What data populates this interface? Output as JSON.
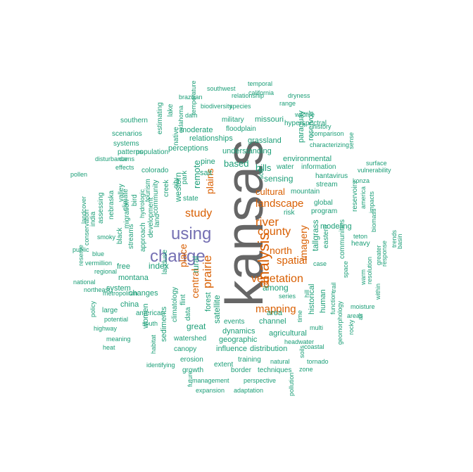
{
  "colors": {
    "top": "#666666",
    "high": "#7570B3",
    "mid": "#D95F02",
    "low": "#1B9E77"
  },
  "words": [
    {
      "text": "kansas",
      "level": "top"
    },
    {
      "text": "using",
      "level": "high"
    },
    {
      "text": "change",
      "level": "high"
    },
    {
      "text": "analysis",
      "level": "mid"
    },
    {
      "text": "river",
      "level": "mid"
    },
    {
      "text": "county",
      "level": "mid"
    },
    {
      "text": "vegetation",
      "level": "mid"
    },
    {
      "text": "prairie",
      "level": "mid"
    },
    {
      "text": "spatial",
      "level": "mid"
    },
    {
      "text": "mapping",
      "level": "mid"
    },
    {
      "text": "study",
      "level": "mid"
    },
    {
      "text": "landscape",
      "level": "mid"
    },
    {
      "text": "north",
      "level": "mid"
    },
    {
      "text": "imagery",
      "level": "mid"
    },
    {
      "text": "cultural",
      "level": "mid"
    },
    {
      "text": "plains",
      "level": "mid"
    },
    {
      "text": "central",
      "level": "mid"
    },
    {
      "text": "place",
      "level": "mid"
    },
    {
      "text": "tallgrass",
      "level": "low"
    },
    {
      "text": "index",
      "level": "low"
    },
    {
      "text": "among",
      "level": "low"
    },
    {
      "text": "sensing",
      "level": "low"
    },
    {
      "text": "based",
      "level": "low"
    },
    {
      "text": "hills",
      "level": "low"
    },
    {
      "text": "western",
      "level": "low"
    },
    {
      "text": "remote",
      "level": "low"
    },
    {
      "text": "rural",
      "level": "low"
    },
    {
      "text": "satellite",
      "level": "low"
    },
    {
      "text": "forest",
      "level": "low"
    },
    {
      "text": "great",
      "level": "low"
    },
    {
      "text": "dynamics",
      "level": "low"
    },
    {
      "text": "events",
      "level": "low"
    },
    {
      "text": "geographic",
      "level": "low"
    },
    {
      "text": "influence",
      "level": "low"
    },
    {
      "text": "distribution",
      "level": "low"
    },
    {
      "text": "channel",
      "level": "low"
    },
    {
      "text": "area",
      "level": "low"
    },
    {
      "text": "agricultural",
      "level": "low"
    },
    {
      "text": "historical",
      "level": "low"
    },
    {
      "text": "human",
      "level": "low"
    },
    {
      "text": "modeling",
      "level": "low"
    },
    {
      "text": "environmental",
      "level": "low"
    },
    {
      "text": "water",
      "level": "low"
    },
    {
      "text": "information",
      "level": "low"
    },
    {
      "text": "mountain",
      "level": "low"
    },
    {
      "text": "stream",
      "level": "low"
    },
    {
      "text": "hantavirus",
      "level": "low"
    },
    {
      "text": "global",
      "level": "low"
    },
    {
      "text": "program",
      "level": "low"
    },
    {
      "text": "risk",
      "level": "low"
    },
    {
      "text": "soil",
      "level": "low"
    },
    {
      "text": "grassland",
      "level": "low"
    },
    {
      "text": "understanding",
      "level": "low"
    },
    {
      "text": "relationships",
      "level": "low"
    },
    {
      "text": "perceptions",
      "level": "low"
    },
    {
      "text": "moderate",
      "level": "low"
    },
    {
      "text": "floodplain",
      "level": "low"
    },
    {
      "text": "missouri",
      "level": "low"
    },
    {
      "text": "military",
      "level": "low"
    },
    {
      "text": "pine",
      "level": "low"
    },
    {
      "text": "salt",
      "level": "low"
    },
    {
      "text": "park",
      "level": "low"
    },
    {
      "text": "state",
      "level": "low"
    },
    {
      "text": "creek",
      "level": "low"
    },
    {
      "text": "city",
      "level": "low"
    },
    {
      "text": "community",
      "level": "low"
    },
    {
      "text": "colorado",
      "level": "low"
    },
    {
      "text": "land",
      "level": "low"
    },
    {
      "text": "landuse",
      "level": "low"
    },
    {
      "text": "climatology",
      "level": "low"
    },
    {
      "text": "flint",
      "level": "low"
    },
    {
      "text": "data",
      "level": "low"
    },
    {
      "text": "watershed",
      "level": "low"
    },
    {
      "text": "canopy",
      "level": "low"
    },
    {
      "text": "erosion",
      "level": "low"
    },
    {
      "text": "growth",
      "level": "low"
    },
    {
      "text": "extent",
      "level": "low"
    },
    {
      "text": "training",
      "level": "low"
    },
    {
      "text": "border",
      "level": "low"
    },
    {
      "text": "techniques",
      "level": "low"
    },
    {
      "text": "management",
      "level": "low"
    },
    {
      "text": "expansion",
      "level": "low"
    },
    {
      "text": "adaptation",
      "level": "low"
    },
    {
      "text": "perspective",
      "level": "low"
    },
    {
      "text": "future",
      "level": "low"
    },
    {
      "text": "pollution",
      "level": "low"
    },
    {
      "text": "natural",
      "level": "low"
    },
    {
      "text": "headwater",
      "level": "low"
    },
    {
      "text": "zone",
      "level": "low"
    },
    {
      "text": "soils",
      "level": "low"
    },
    {
      "text": "tornado",
      "level": "low"
    },
    {
      "text": "coastal",
      "level": "low"
    },
    {
      "text": "multi",
      "level": "low"
    },
    {
      "text": "series",
      "level": "low"
    },
    {
      "text": "time",
      "level": "low"
    },
    {
      "text": "hill",
      "level": "low"
    },
    {
      "text": "trail",
      "level": "low"
    },
    {
      "text": "function",
      "level": "low"
    },
    {
      "text": "geomorphology",
      "level": "low"
    },
    {
      "text": "space",
      "level": "low"
    },
    {
      "text": "rocky",
      "level": "low"
    },
    {
      "text": "communities",
      "level": "low"
    },
    {
      "text": "eastern",
      "level": "low"
    },
    {
      "text": "case",
      "level": "low"
    },
    {
      "text": "air",
      "level": "low"
    },
    {
      "text": "areas",
      "level": "low"
    },
    {
      "text": "moisture",
      "level": "low"
    },
    {
      "text": "heavy",
      "level": "low"
    },
    {
      "text": "teton",
      "level": "low"
    },
    {
      "text": "warm",
      "level": "low"
    },
    {
      "text": "resolution",
      "level": "low"
    },
    {
      "text": "within",
      "level": "low"
    },
    {
      "text": "greater",
      "level": "low"
    },
    {
      "text": "response",
      "level": "low"
    },
    {
      "text": "trends",
      "level": "low"
    },
    {
      "text": "basin",
      "level": "low"
    },
    {
      "text": "biomass",
      "level": "low"
    },
    {
      "text": "impacts",
      "level": "low"
    },
    {
      "text": "america",
      "level": "low"
    },
    {
      "text": "reservoirs",
      "level": "low"
    },
    {
      "text": "vulnerability",
      "level": "low"
    },
    {
      "text": "konza",
      "level": "low"
    },
    {
      "text": "surface",
      "level": "low"
    },
    {
      "text": "sense",
      "level": "low"
    },
    {
      "text": "characterizing",
      "level": "low"
    },
    {
      "text": "comparison",
      "level": "low"
    },
    {
      "text": "history",
      "level": "low"
    },
    {
      "text": "reservoir",
      "level": "low"
    },
    {
      "text": "paraguay",
      "level": "low"
    },
    {
      "text": "hyperspectral",
      "level": "low"
    },
    {
      "text": "wildfire",
      "level": "low"
    },
    {
      "text": "range",
      "level": "low"
    },
    {
      "text": "dryness",
      "level": "low"
    },
    {
      "text": "california",
      "level": "low"
    },
    {
      "text": "temporal",
      "level": "low"
    },
    {
      "text": "species",
      "level": "low"
    },
    {
      "text": "relationship",
      "level": "low"
    },
    {
      "text": "southwest",
      "level": "low"
    },
    {
      "text": "biodiversity",
      "level": "low"
    },
    {
      "text": "dam",
      "level": "low"
    },
    {
      "text": "temperature",
      "level": "low"
    },
    {
      "text": "brazilian",
      "level": "low"
    },
    {
      "text": "oklahoma",
      "level": "low"
    },
    {
      "text": "lake",
      "level": "low"
    },
    {
      "text": "native",
      "level": "low"
    },
    {
      "text": "estimating",
      "level": "low"
    },
    {
      "text": "southern",
      "level": "low"
    },
    {
      "text": "scenarios",
      "level": "low"
    },
    {
      "text": "systems",
      "level": "low"
    },
    {
      "text": "patterns",
      "level": "low"
    },
    {
      "text": "population",
      "level": "low"
    },
    {
      "text": "disturbance",
      "level": "low"
    },
    {
      "text": "dams",
      "level": "low"
    },
    {
      "text": "effects",
      "level": "low"
    },
    {
      "text": "pollen",
      "level": "low"
    },
    {
      "text": "valley",
      "level": "low"
    },
    {
      "text": "tourism",
      "level": "low"
    },
    {
      "text": "hydrologic",
      "level": "low"
    },
    {
      "text": "development",
      "level": "low"
    },
    {
      "text": "approach",
      "level": "low"
    },
    {
      "text": "bird",
      "level": "low"
    },
    {
      "text": "climate",
      "level": "low"
    },
    {
      "text": "migration",
      "level": "low"
    },
    {
      "text": "streams",
      "level": "low"
    },
    {
      "text": "nebraska",
      "level": "low"
    },
    {
      "text": "black",
      "level": "low"
    },
    {
      "text": "india",
      "level": "low"
    },
    {
      "text": "assessing",
      "level": "low"
    },
    {
      "text": "landcover",
      "level": "low"
    },
    {
      "text": "conservation",
      "level": "low"
    },
    {
      "text": "smoky",
      "level": "low"
    },
    {
      "text": "reserve",
      "level": "low"
    },
    {
      "text": "public",
      "level": "low"
    },
    {
      "text": "blue",
      "level": "low"
    },
    {
      "text": "vermillion",
      "level": "low"
    },
    {
      "text": "regional",
      "level": "low"
    },
    {
      "text": "free",
      "level": "low"
    },
    {
      "text": "montana",
      "level": "low"
    },
    {
      "text": "system",
      "level": "low"
    },
    {
      "text": "national",
      "level": "low"
    },
    {
      "text": "northeast",
      "level": "low"
    },
    {
      "text": "metropolitan",
      "level": "low"
    },
    {
      "text": "changes",
      "level": "low"
    },
    {
      "text": "china",
      "level": "low"
    },
    {
      "text": "policy",
      "level": "low"
    },
    {
      "text": "large",
      "level": "low"
    },
    {
      "text": "american",
      "level": "low"
    },
    {
      "text": "potential",
      "level": "low"
    },
    {
      "text": "highway",
      "level": "low"
    },
    {
      "text": "south",
      "level": "low"
    },
    {
      "text": "women",
      "level": "low"
    },
    {
      "text": "meaning",
      "level": "low"
    },
    {
      "text": "heat",
      "level": "low"
    },
    {
      "text": "habitat",
      "level": "low"
    },
    {
      "text": "sediments",
      "level": "low"
    },
    {
      "text": "identifying",
      "level": "low"
    },
    {
      "text": "louisiana",
      "level": "low"
    },
    {
      "text": "geography",
      "level": "low"
    },
    {
      "text": "diffusion",
      "level": "low"
    }
  ]
}
